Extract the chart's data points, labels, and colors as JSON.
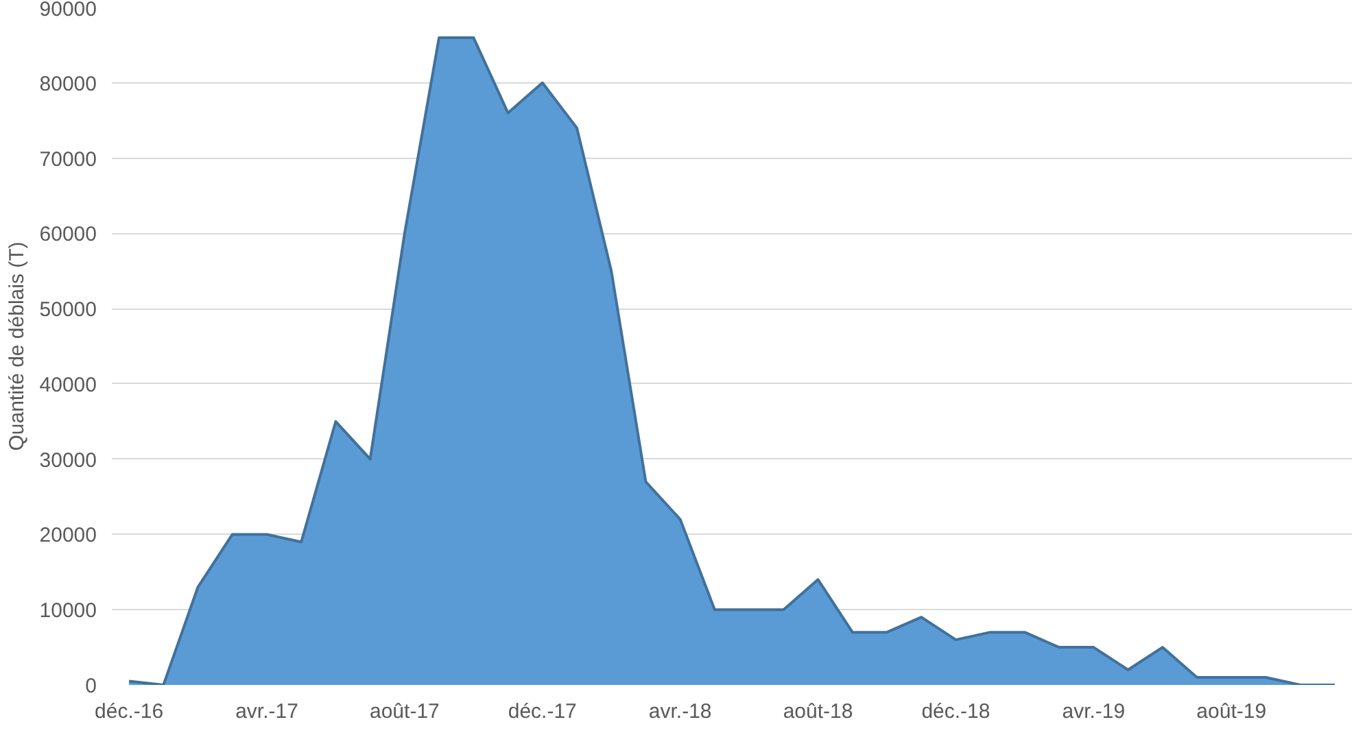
{
  "chart_data": {
    "type": "area",
    "ylabel": "Quantité de déblais (T)",
    "categories": [
      "déc.-16",
      null,
      null,
      null,
      "avr.-17",
      null,
      null,
      null,
      "août-17",
      null,
      null,
      null,
      "déc.-17",
      null,
      null,
      null,
      "avr.-18",
      null,
      null,
      null,
      "août-18",
      null,
      null,
      null,
      "déc.-18",
      null,
      null,
      null,
      "avr.-19",
      null,
      null,
      null,
      "août-19",
      null,
      null,
      null
    ],
    "series": [
      {
        "color": "#5b9bd5",
        "values": [
          500,
          0,
          13000,
          20000,
          20000,
          19000,
          35000,
          30000,
          60000,
          86000,
          86000,
          76000,
          80000,
          74000,
          55000,
          27000,
          22000,
          10000,
          10000,
          10000,
          14000,
          7000,
          7000,
          9000,
          6000,
          7000,
          7000,
          5000,
          5000,
          2000,
          5000,
          1000,
          1000,
          1000,
          0,
          0
        ]
      }
    ],
    "ylim": [
      0,
      90000
    ],
    "yticks": [
      0,
      10000,
      20000,
      30000,
      40000,
      50000,
      60000,
      70000,
      80000,
      90000
    ],
    "grid": "y"
  }
}
